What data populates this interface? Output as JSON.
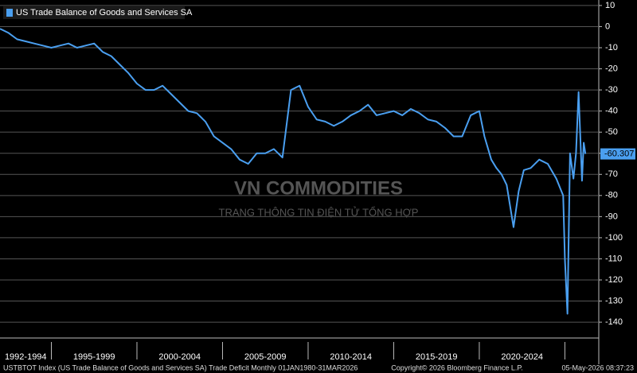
{
  "chart_data": {
    "type": "line",
    "legend": "US Trade Balance of Goods and Services SA",
    "x": [
      1992.0,
      1992.5,
      1993.0,
      1993.5,
      1994.0,
      1994.5,
      1995.0,
      1995.5,
      1996.0,
      1996.5,
      1997.0,
      1997.5,
      1998.0,
      1998.5,
      1999.0,
      1999.5,
      2000.0,
      2000.5,
      2001.0,
      2001.5,
      2002.0,
      2002.5,
      2003.0,
      2003.5,
      2004.0,
      2004.5,
      2005.0,
      2005.5,
      2006.0,
      2006.5,
      2007.0,
      2007.5,
      2008.0,
      2008.5,
      2009.0,
      2009.5,
      2010.0,
      2010.5,
      2011.0,
      2011.5,
      2012.0,
      2012.5,
      2013.0,
      2013.5,
      2014.0,
      2014.5,
      2015.0,
      2015.5,
      2016.0,
      2016.5,
      2017.0,
      2017.5,
      2018.0,
      2018.5,
      2019.0,
      2019.5,
      2020.0,
      2020.3,
      2020.7,
      2021.0,
      2021.3,
      2021.6,
      2022.0,
      2022.3,
      2022.6,
      2023.0,
      2023.5,
      2024.0,
      2024.5,
      2024.9,
      2025.0,
      2025.15,
      2025.3,
      2025.5,
      2025.65,
      2025.8,
      2026.0,
      2026.1,
      2026.2
    ],
    "series": [
      {
        "name": "US Trade Balance of Goods and Services SA",
        "color": "#4a9ff0",
        "values": [
          -1,
          -3,
          -6,
          -7,
          -8,
          -9,
          -10,
          -9,
          -8,
          -10,
          -9,
          -8,
          -12,
          -14,
          -18,
          -22,
          -27,
          -30,
          -30,
          -28,
          -32,
          -36,
          -40,
          -41,
          -45,
          -52,
          -55,
          -58,
          -63,
          -65,
          -60,
          -60,
          -58,
          -62,
          -30,
          -28,
          -38,
          -44,
          -45,
          -47,
          -45,
          -42,
          -40,
          -37,
          -42,
          -41,
          -40,
          -42,
          -39,
          -41,
          -44,
          -45,
          -48,
          -52,
          -52,
          -42,
          -40,
          -52,
          -63,
          -67,
          -70,
          -75,
          -95,
          -78,
          -68,
          -67,
          -63,
          -65,
          -72,
          -80,
          -110,
          -136,
          -60,
          -72,
          -60,
          -31,
          -73,
          -55,
          -60.307
        ]
      }
    ],
    "last_value": {
      "value": -60.307,
      "label": "-60.307"
    },
    "xlim": [
      1992,
      2026.98
    ],
    "ylim": [
      -147.5,
      12.6
    ],
    "yticks": [
      10,
      0,
      -10,
      -20,
      -30,
      -40,
      -50,
      -60,
      -70,
      -80,
      -90,
      -100,
      -110,
      -120,
      -130,
      -140
    ],
    "x_bands": [
      {
        "label": "1992-1994",
        "start": 1992,
        "end": 1995
      },
      {
        "label": "1995-1999",
        "start": 1995,
        "end": 2000
      },
      {
        "label": "2000-2004",
        "start": 2000,
        "end": 2005
      },
      {
        "label": "2005-2009",
        "start": 2005,
        "end": 2010
      },
      {
        "label": "2010-2014",
        "start": 2010,
        "end": 2015
      },
      {
        "label": "2015-2019",
        "start": 2015,
        "end": 2020
      },
      {
        "label": "2020-2024",
        "start": 2020,
        "end": 2025
      }
    ],
    "watermark": {
      "title": "VN COMMODITIES",
      "subtitle": "TRANG THÔNG TIN ĐIỆN TỬ TỔNG HỢP"
    },
    "footer": {
      "left": "USTBTOT Index (US Trade Balance of Goods and Services SA) Trade Deficit Monthly 01JAN1980-31MAR2026",
      "center": "Copyright© 2026 Bloomberg Finance L.P.",
      "right": "05-May-2026 08:37:23"
    }
  }
}
